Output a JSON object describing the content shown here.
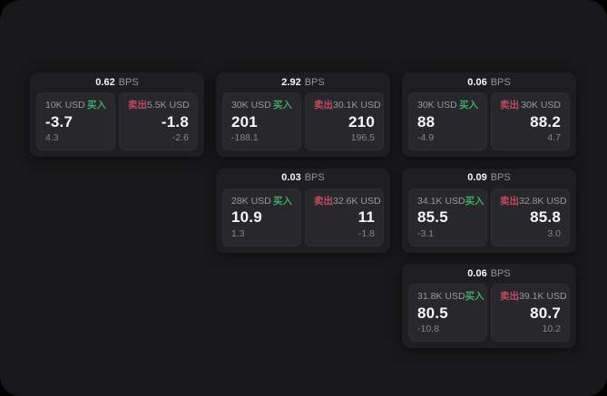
{
  "labels": {
    "bps": "BPS",
    "buy": "买入",
    "sell": "卖出"
  },
  "colors": {
    "buy": "#3eab63",
    "sell": "#c34a60",
    "card_bg": "#1e1e21",
    "panel_bg": "#28282c",
    "window_bg": "#18181a",
    "value_text": "#f7f7f8",
    "muted_text": "#85858b"
  },
  "cards": [
    {
      "bps": "0.62",
      "buy": {
        "amount": "10K USD",
        "value": "-3.7",
        "delta": "4.3"
      },
      "sell": {
        "amount": "5.5K USD",
        "value": "-1.8",
        "delta": "-2.6"
      }
    },
    {
      "bps": "2.92",
      "buy": {
        "amount": "30K USD",
        "value": "201",
        "delta": "-188.1"
      },
      "sell": {
        "amount": "30.1K USD",
        "value": "210",
        "delta": "196.5"
      }
    },
    {
      "bps": "0.06",
      "buy": {
        "amount": "30K USD",
        "value": "88",
        "delta": "-4.9"
      },
      "sell": {
        "amount": "30K USD",
        "value": "88.2",
        "delta": "4.7"
      }
    },
    {
      "bps": "0.03",
      "buy": {
        "amount": "28K USD",
        "value": "10.9",
        "delta": "1.3"
      },
      "sell": {
        "amount": "32.6K USD",
        "value": "11",
        "delta": "-1.8"
      }
    },
    {
      "bps": "0.09",
      "buy": {
        "amount": "34.1K USD",
        "value": "85.5",
        "delta": "-3.1"
      },
      "sell": {
        "amount": "32.8K USD",
        "value": "85.8",
        "delta": "3.0"
      }
    },
    {
      "bps": "0.06",
      "buy": {
        "amount": "31.8K USD",
        "value": "80.5",
        "delta": "-10.8"
      },
      "sell": {
        "amount": "39.1K USD",
        "value": "80.7",
        "delta": "10.2"
      }
    }
  ]
}
